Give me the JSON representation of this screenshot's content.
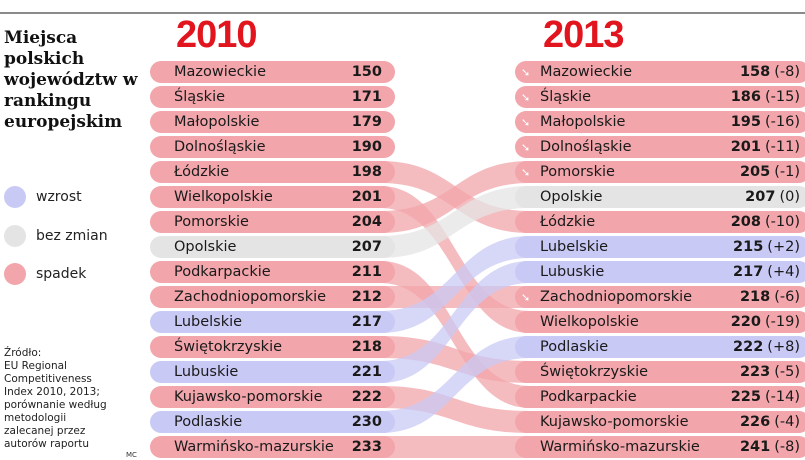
{
  "title": "Miejsca polskich województw w rankingu europejskim",
  "colors": {
    "wzrost": "#c9c9f6",
    "bez zmian": "#e4e4e4",
    "spadek": "#f2a5ab",
    "title_red": "#e2151f"
  },
  "legend": [
    {
      "key": "wzrost",
      "label": "wzrost"
    },
    {
      "key": "bez zmian",
      "label": "bez zmian"
    },
    {
      "key": "spadek",
      "label": "spadek"
    }
  ],
  "source": [
    "Źródło:",
    "EU Regional",
    "Competitiveness",
    "Index 2010, 2013;",
    "porównanie według",
    "metodologii",
    "zalecanej przez",
    "autorów raportu"
  ],
  "author": "MC",
  "chart_data": {
    "type": "slope",
    "title": "Miejsca polskich województw w rankingu europejskim",
    "years": [
      "2010",
      "2013"
    ],
    "rows": [
      {
        "name": "Mazowieckie",
        "r2010": 150,
        "r2013": 158,
        "change": "(-8)",
        "status": "spadek",
        "arrow": true
      },
      {
        "name": "Śląskie",
        "r2010": 171,
        "r2013": 186,
        "change": "(-15)",
        "status": "spadek",
        "arrow": true
      },
      {
        "name": "Małopolskie",
        "r2010": 179,
        "r2013": 195,
        "change": "(-16)",
        "status": "spadek",
        "arrow": true
      },
      {
        "name": "Dolnośląskie",
        "r2010": 190,
        "r2013": 201,
        "change": "(-11)",
        "status": "spadek",
        "arrow": true
      },
      {
        "name": "Łódzkie",
        "r2010": 198,
        "r2013": 208,
        "change": "(-10)",
        "status": "spadek",
        "arrow": false
      },
      {
        "name": "Wielkopolskie",
        "r2010": 201,
        "r2013": 220,
        "change": "(-19)",
        "status": "spadek",
        "arrow": false
      },
      {
        "name": "Pomorskie",
        "r2010": 204,
        "r2013": 205,
        "change": "(-1)",
        "status": "spadek",
        "arrow": true
      },
      {
        "name": "Opolskie",
        "r2010": 207,
        "r2013": 207,
        "change": "(0)",
        "status": "bez zmian",
        "arrow": false
      },
      {
        "name": "Podkarpackie",
        "r2010": 211,
        "r2013": 225,
        "change": "(-14)",
        "status": "spadek",
        "arrow": false
      },
      {
        "name": "Zachodniopomorskie",
        "r2010": 212,
        "r2013": 218,
        "change": "(-6)",
        "status": "spadek",
        "arrow": true
      },
      {
        "name": "Lubelskie",
        "r2010": 217,
        "r2013": 215,
        "change": "(+2)",
        "status": "wzrost",
        "arrow": false
      },
      {
        "name": "Świętokrzyskie",
        "r2010": 218,
        "r2013": 223,
        "change": "(-5)",
        "status": "spadek",
        "arrow": false
      },
      {
        "name": "Lubuskie",
        "r2010": 221,
        "r2013": 217,
        "change": "(+4)",
        "status": "wzrost",
        "arrow": false
      },
      {
        "name": "Kujawsko-pomorskie",
        "r2010": 222,
        "r2013": 226,
        "change": "(-4)",
        "status": "spadek",
        "arrow": false
      },
      {
        "name": "Podlaskie",
        "r2010": 230,
        "r2013": 222,
        "change": "(+8)",
        "status": "wzrost",
        "arrow": false
      },
      {
        "name": "Warmińsko-mazurskie",
        "r2010": 233,
        "r2013": 241,
        "change": "(-8)",
        "status": "spadek",
        "arrow": false
      }
    ]
  }
}
